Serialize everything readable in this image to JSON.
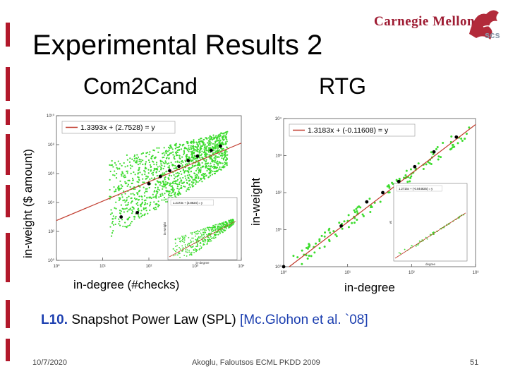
{
  "slide": {
    "title": "Experimental Results 2",
    "logo": "Carnegie Mellon",
    "caption_id": "L10.",
    "caption_text": "Snapshot Power Law (SPL)",
    "caption_cite": "[Mc.Glohon et al. `08]",
    "footer_date": "10/7/2020",
    "footer_center": "Akoglu, Faloutsos ECML PKDD 2009",
    "page_number": "51"
  },
  "colors": {
    "points": "#3ddc2f",
    "fit": "#c0392b",
    "bins": "#000000",
    "accent": "#b2182b"
  },
  "chart_data": [
    {
      "type": "scatter",
      "title": "Com2Cand",
      "xlabel": "in-degree (#checks)",
      "ylabel": "in-weight ($ amount)",
      "x_scale": "log",
      "y_scale": "log",
      "xlim": [
        1,
        10000
      ],
      "ylim": [
        1,
        10000000000
      ],
      "x_ticks": [
        "10⁰",
        "10¹",
        "10²",
        "10³",
        "10⁴"
      ],
      "y_ticks": [
        "10⁰",
        "10²",
        "10⁴",
        "10⁶",
        "10⁸",
        "10¹⁰"
      ],
      "fit_label": "1.3393x + (2.7528) = y",
      "fit": {
        "slope": 1.3393,
        "intercept": 2.7528
      },
      "binned_points": [
        [
          1.4,
          3.0
        ],
        [
          1.75,
          3.3
        ],
        [
          2.0,
          5.3
        ],
        [
          2.25,
          5.8
        ],
        [
          2.45,
          6.2
        ],
        [
          2.65,
          6.5
        ],
        [
          2.85,
          6.9
        ],
        [
          3.05,
          7.2
        ],
        [
          3.35,
          7.6
        ],
        [
          3.55,
          7.9
        ]
      ],
      "inset": {
        "fit_label": "1.2173x + (2.8624) = y",
        "xlabel": "in-degree",
        "ylabel": "in-weight"
      }
    },
    {
      "type": "scatter",
      "title": "RTG",
      "xlabel": "in-degree",
      "ylabel": "in-weight",
      "x_scale": "log",
      "y_scale": "log",
      "xlim": [
        1,
        1000
      ],
      "ylim": [
        1,
        10000
      ],
      "x_ticks": [
        "10⁰",
        "10¹",
        "10²",
        "10³"
      ],
      "y_ticks": [
        "10⁰",
        "10¹",
        "10²",
        "10³",
        "10⁴"
      ],
      "fit_label": "1.3183x + (-0.11608) = y",
      "fit": {
        "slope": 1.3183,
        "intercept": -0.11608
      },
      "binned_points": [
        [
          0.0,
          0.0
        ],
        [
          0.9,
          1.1
        ],
        [
          1.3,
          1.75
        ],
        [
          1.55,
          2.0
        ],
        [
          1.8,
          2.3
        ],
        [
          2.05,
          2.7
        ],
        [
          2.35,
          3.1
        ],
        [
          2.7,
          3.5
        ]
      ],
      "inset": {
        "fit_label": "1.2715x + (-0.044825) = y",
        "xlabel": "degree",
        "ylabel": "wt"
      }
    }
  ]
}
